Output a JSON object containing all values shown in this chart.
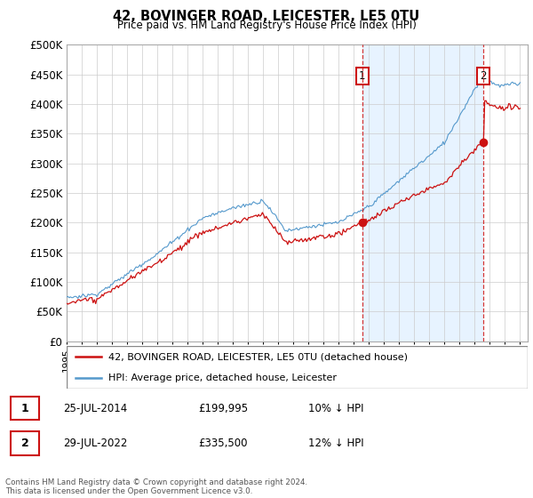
{
  "title": "42, BOVINGER ROAD, LEICESTER, LE5 0TU",
  "subtitle": "Price paid vs. HM Land Registry's House Price Index (HPI)",
  "legend_line1": "42, BOVINGER ROAD, LEICESTER, LE5 0TU (detached house)",
  "legend_line2": "HPI: Average price, detached house, Leicester",
  "sale1_label": "1",
  "sale1_date": "25-JUL-2014",
  "sale1_price": "£199,995",
  "sale1_hpi": "10% ↓ HPI",
  "sale2_label": "2",
  "sale2_date": "29-JUL-2022",
  "sale2_price": "£335,500",
  "sale2_hpi": "12% ↓ HPI",
  "footer": "Contains HM Land Registry data © Crown copyright and database right 2024.\nThis data is licensed under the Open Government Licence v3.0.",
  "hpi_color": "#5599cc",
  "sale_color": "#cc1111",
  "sale1_year": 2014.56,
  "sale2_year": 2022.57,
  "sale1_price_val": 199995,
  "sale2_price_val": 335500,
  "ylim_max": 500000,
  "ylim_min": 0,
  "background_color": "#ffffff",
  "chart_bg": "#ffffff",
  "shade_color": "#ddeeff"
}
